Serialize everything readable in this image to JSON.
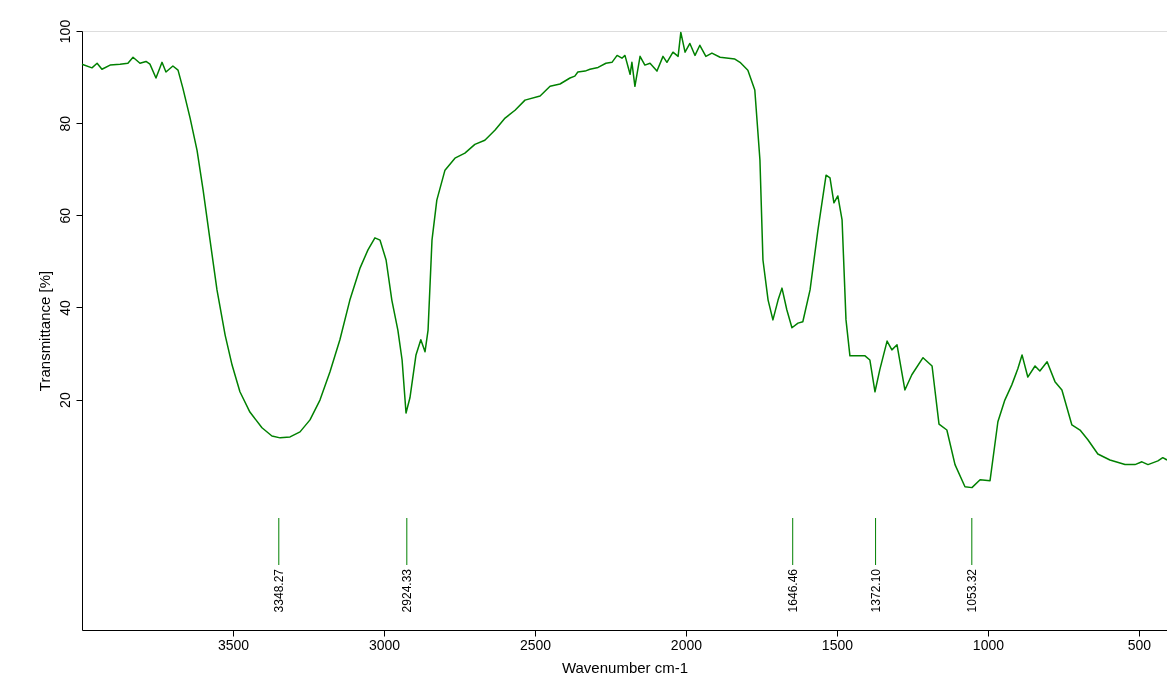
{
  "chart_data": {
    "type": "line",
    "xlabel": "Wavenumber cm-1",
    "ylabel": "Transmittance [%]",
    "x": [
      4000,
      3967,
      3950,
      3934,
      3907,
      3874,
      3848,
      3831,
      3808,
      3788,
      3775,
      3755,
      3735,
      3722,
      3699,
      3682,
      3666,
      3642,
      3619,
      3599,
      3576,
      3553,
      3526,
      3503,
      3477,
      3444,
      3404,
      3371,
      3344,
      3311,
      3278,
      3245,
      3212,
      3179,
      3146,
      3113,
      3079,
      3053,
      3030,
      3013,
      2993,
      2974,
      2954,
      2940,
      2927,
      2914,
      2894,
      2878,
      2864,
      2854,
      2841,
      2825,
      2798,
      2765,
      2732,
      2699,
      2666,
      2632,
      2599,
      2566,
      2533,
      2483,
      2450,
      2417,
      2384,
      2368,
      2358,
      2334,
      2318,
      2291,
      2265,
      2245,
      2228,
      2212,
      2202,
      2185,
      2179,
      2169,
      2152,
      2136,
      2119,
      2096,
      2076,
      2063,
      2043,
      2026,
      2017,
      2003,
      1987,
      1970,
      1954,
      1934,
      1914,
      1887,
      1838,
      1821,
      1795,
      1772,
      1755,
      1745,
      1728,
      1712,
      1695,
      1682,
      1666,
      1649,
      1629,
      1613,
      1589,
      1563,
      1536,
      1523,
      1510,
      1497,
      1483,
      1470,
      1457,
      1430,
      1407,
      1391,
      1374,
      1358,
      1334,
      1318,
      1301,
      1275,
      1252,
      1215,
      1185,
      1162,
      1136,
      1109,
      1076,
      1053,
      1026,
      993,
      967,
      944,
      921,
      901,
      887,
      868,
      844,
      828,
      804,
      778,
      755,
      722,
      695,
      669,
      636,
      596,
      546,
      513,
      490,
      470,
      437,
      421,
      407
    ],
    "series": [
      {
        "color": "#008000",
        "values": [
          92.8,
          92.0,
          93.0,
          91.7,
          92.6,
          92.8,
          93.0,
          94.3,
          93.0,
          93.4,
          92.8,
          89.8,
          93.2,
          91.1,
          92.4,
          91.5,
          87.6,
          81.1,
          74.1,
          65.5,
          54.6,
          43.8,
          34.0,
          27.5,
          21.7,
          17.3,
          13.9,
          12.1,
          11.7,
          11.9,
          13.0,
          15.6,
          19.9,
          26.0,
          33.0,
          41.6,
          48.6,
          52.5,
          55.1,
          54.6,
          50.3,
          41.6,
          35.1,
          28.6,
          17.1,
          20.4,
          29.7,
          33.0,
          30.4,
          35.1,
          54.6,
          63.3,
          69.8,
          72.4,
          73.5,
          75.4,
          76.3,
          78.5,
          81.1,
          82.8,
          85.0,
          85.9,
          88.0,
          88.5,
          89.8,
          90.2,
          91.1,
          91.3,
          91.7,
          92.1,
          93.0,
          93.2,
          94.7,
          94.1,
          94.7,
          90.6,
          93.2,
          88.0,
          94.5,
          92.6,
          93.0,
          91.3,
          94.5,
          93.2,
          95.4,
          94.5,
          99.7,
          95.4,
          97.3,
          94.7,
          96.9,
          94.5,
          95.2,
          94.3,
          93.9,
          93.2,
          91.5,
          87.2,
          72.0,
          50.3,
          41.6,
          37.3,
          41.6,
          44.2,
          39.5,
          35.6,
          36.6,
          36.9,
          43.8,
          56.8,
          68.7,
          68.1,
          62.7,
          64.2,
          59.0,
          37.3,
          29.5,
          29.5,
          29.5,
          28.6,
          21.7,
          26.5,
          32.7,
          30.8,
          31.9,
          22.1,
          25.4,
          29.1,
          27.3,
          14.7,
          13.4,
          5.9,
          1.1,
          0.9,
          2.6,
          2.4,
          15.2,
          19.9,
          23.2,
          26.7,
          29.7,
          24.9,
          27.3,
          26.2,
          28.2,
          23.9,
          22.1,
          14.5,
          13.4,
          11.3,
          8.2,
          6.9,
          5.9,
          5.9,
          6.5,
          5.9,
          6.7,
          7.4,
          6.9
        ]
      }
    ],
    "xlim": [
      4000,
      407
    ],
    "xticks": [
      3500,
      3000,
      2500,
      2000,
      1500,
      1000,
      500
    ],
    "ylim": [
      -30,
      100
    ],
    "yticks": [
      20,
      40,
      60,
      80,
      100
    ],
    "grid": false,
    "marker": "none",
    "line_style": "solid",
    "annotations": [
      {
        "text": "3348.27",
        "x": 3348.27
      },
      {
        "text": "2924.33",
        "x": 2924.33
      },
      {
        "text": "1646.46",
        "x": 1646.46
      },
      {
        "text": "1372.10",
        "x": 1372.1
      },
      {
        "text": "1053.32",
        "x": 1053.32
      }
    ]
  }
}
